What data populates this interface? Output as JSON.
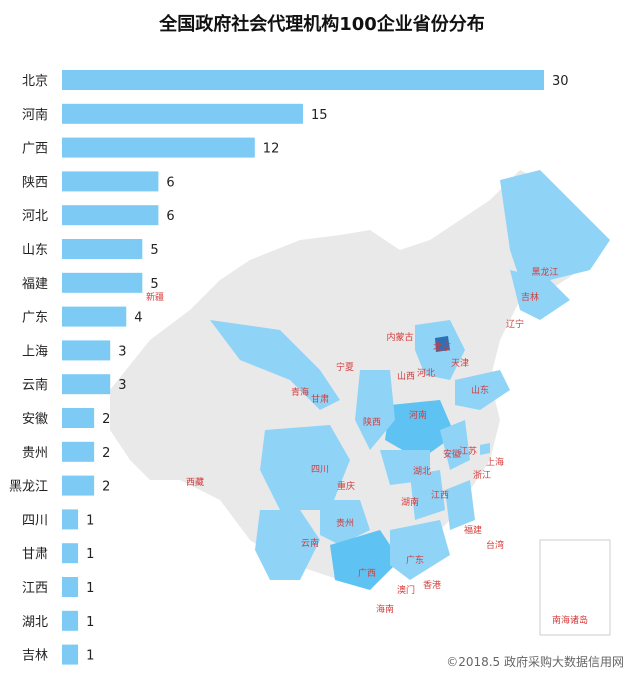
{
  "title": "全国政府社会代理机构100企业省份分布",
  "copyright": "©2018.5 政府采购大数据信用网",
  "colors": {
    "bar": "#7dcbf5",
    "map_base": "#e9e9e9",
    "map_light": "#8fd3f7",
    "map_mid": "#5ec2f3",
    "map_dark": "#2f6fb5",
    "map_label": "#d53c3c"
  },
  "chart_data": {
    "type": "bar",
    "orientation": "horizontal",
    "categories": [
      "北京",
      "河南",
      "广西",
      "陕西",
      "河北",
      "山东",
      "福建",
      "广东",
      "上海",
      "云南",
      "安徽",
      "贵州",
      "黑龙江",
      "四川",
      "甘肃",
      "江西",
      "湖北",
      "吉林"
    ],
    "values": [
      30,
      15,
      12,
      6,
      6,
      5,
      5,
      4,
      3,
      3,
      2,
      2,
      2,
      1,
      1,
      1,
      1,
      1
    ],
    "xlim": [
      0,
      30
    ]
  },
  "map_labels": [
    "新疆",
    "西藏",
    "青海",
    "甘肃",
    "宁夏",
    "内蒙古",
    "黑龙江",
    "吉林",
    "辽宁",
    "北京",
    "天津",
    "河北",
    "山西",
    "山东",
    "河南",
    "陕西",
    "四川",
    "重庆",
    "湖北",
    "安徽",
    "江苏",
    "上海",
    "浙江",
    "湖南",
    "江西",
    "贵州",
    "云南",
    "广西",
    "广东",
    "福建",
    "台湾",
    "香港",
    "澳门",
    "海南",
    "南海诸岛"
  ]
}
